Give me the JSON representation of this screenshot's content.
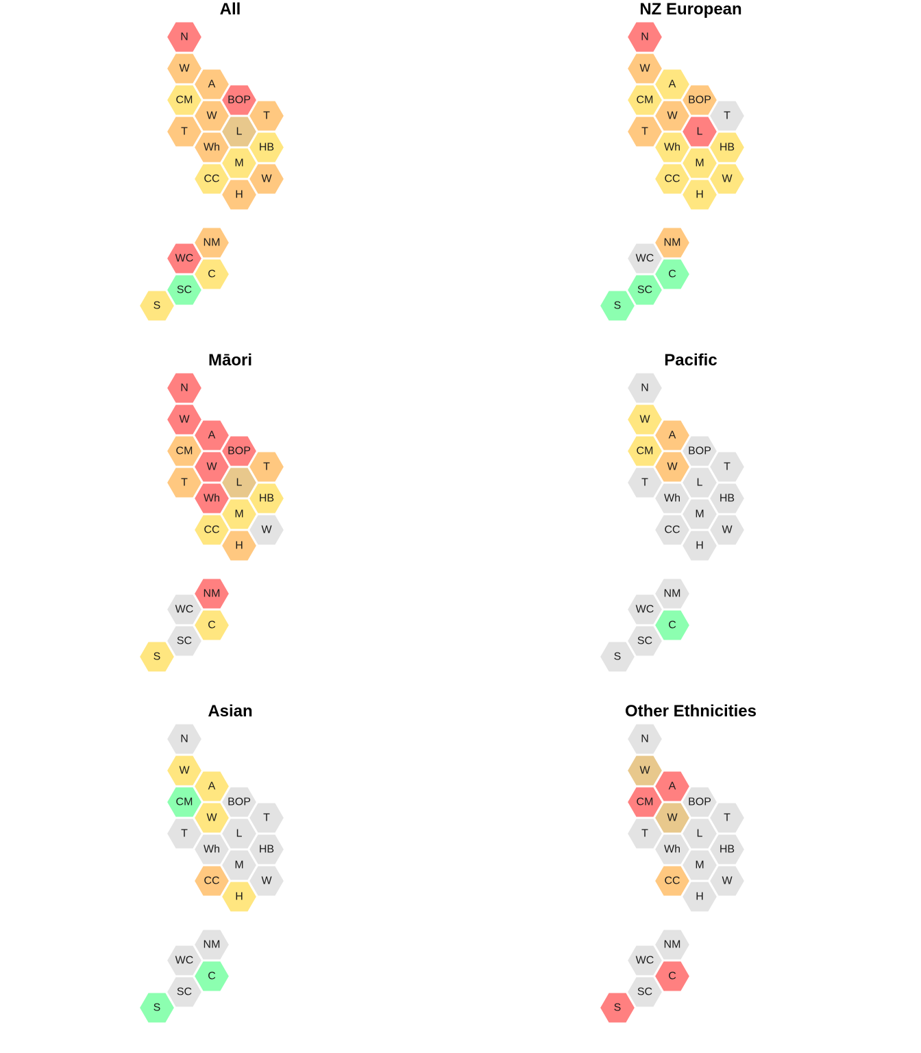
{
  "colors": {
    "red": "#ff8080",
    "orange": "#ffc880",
    "yellow": "#ffe680",
    "tan": "#e8c88c",
    "green": "#8cffb0",
    "grey": "#e3e3e3"
  },
  "panels": [
    {
      "title": "All",
      "regions": [
        {
          "label": "N",
          "color": "red"
        },
        {
          "label": "W",
          "color": "orange"
        },
        {
          "label": "A",
          "color": "orange"
        },
        {
          "label": "CM",
          "color": "yellow"
        },
        {
          "label": "BOP",
          "color": "red"
        },
        {
          "label": "W",
          "color": "orange"
        },
        {
          "label": "T",
          "color": "orange"
        },
        {
          "label": "T",
          "color": "orange"
        },
        {
          "label": "L",
          "color": "tan"
        },
        {
          "label": "Wh",
          "color": "orange"
        },
        {
          "label": "HB",
          "color": "yellow"
        },
        {
          "label": "M",
          "color": "yellow"
        },
        {
          "label": "CC",
          "color": "yellow"
        },
        {
          "label": "W",
          "color": "orange"
        },
        {
          "label": "H",
          "color": "orange"
        },
        {
          "label": "NM",
          "color": "orange"
        },
        {
          "label": "WC",
          "color": "red"
        },
        {
          "label": "C",
          "color": "yellow"
        },
        {
          "label": "SC",
          "color": "green"
        },
        {
          "label": "S",
          "color": "yellow"
        }
      ]
    },
    {
      "title": "NZ European",
      "regions": [
        {
          "label": "N",
          "color": "red"
        },
        {
          "label": "W",
          "color": "orange"
        },
        {
          "label": "A",
          "color": "yellow"
        },
        {
          "label": "CM",
          "color": "yellow"
        },
        {
          "label": "BOP",
          "color": "orange"
        },
        {
          "label": "W",
          "color": "orange"
        },
        {
          "label": "T",
          "color": "grey"
        },
        {
          "label": "T",
          "color": "orange"
        },
        {
          "label": "L",
          "color": "red"
        },
        {
          "label": "Wh",
          "color": "yellow"
        },
        {
          "label": "HB",
          "color": "yellow"
        },
        {
          "label": "M",
          "color": "yellow"
        },
        {
          "label": "CC",
          "color": "yellow"
        },
        {
          "label": "W",
          "color": "yellow"
        },
        {
          "label": "H",
          "color": "yellow"
        },
        {
          "label": "NM",
          "color": "orange"
        },
        {
          "label": "WC",
          "color": "grey"
        },
        {
          "label": "C",
          "color": "green"
        },
        {
          "label": "SC",
          "color": "green"
        },
        {
          "label": "S",
          "color": "green"
        }
      ]
    },
    {
      "title": "Māori",
      "regions": [
        {
          "label": "N",
          "color": "red"
        },
        {
          "label": "W",
          "color": "red"
        },
        {
          "label": "A",
          "color": "red"
        },
        {
          "label": "CM",
          "color": "orange"
        },
        {
          "label": "BOP",
          "color": "red"
        },
        {
          "label": "W",
          "color": "red"
        },
        {
          "label": "T",
          "color": "orange"
        },
        {
          "label": "T",
          "color": "orange"
        },
        {
          "label": "L",
          "color": "tan"
        },
        {
          "label": "Wh",
          "color": "red"
        },
        {
          "label": "HB",
          "color": "yellow"
        },
        {
          "label": "M",
          "color": "yellow"
        },
        {
          "label": "CC",
          "color": "yellow"
        },
        {
          "label": "W",
          "color": "grey"
        },
        {
          "label": "H",
          "color": "orange"
        },
        {
          "label": "NM",
          "color": "red"
        },
        {
          "label": "WC",
          "color": "grey"
        },
        {
          "label": "C",
          "color": "yellow"
        },
        {
          "label": "SC",
          "color": "grey"
        },
        {
          "label": "S",
          "color": "yellow"
        }
      ]
    },
    {
      "title": "Pacific",
      "regions": [
        {
          "label": "N",
          "color": "grey"
        },
        {
          "label": "W",
          "color": "yellow"
        },
        {
          "label": "A",
          "color": "orange"
        },
        {
          "label": "CM",
          "color": "yellow"
        },
        {
          "label": "BOP",
          "color": "grey"
        },
        {
          "label": "W",
          "color": "orange"
        },
        {
          "label": "T",
          "color": "grey"
        },
        {
          "label": "T",
          "color": "grey"
        },
        {
          "label": "L",
          "color": "grey"
        },
        {
          "label": "Wh",
          "color": "grey"
        },
        {
          "label": "HB",
          "color": "grey"
        },
        {
          "label": "M",
          "color": "grey"
        },
        {
          "label": "CC",
          "color": "grey"
        },
        {
          "label": "W",
          "color": "grey"
        },
        {
          "label": "H",
          "color": "grey"
        },
        {
          "label": "NM",
          "color": "grey"
        },
        {
          "label": "WC",
          "color": "grey"
        },
        {
          "label": "C",
          "color": "green"
        },
        {
          "label": "SC",
          "color": "grey"
        },
        {
          "label": "S",
          "color": "grey"
        }
      ]
    },
    {
      "title": "Asian",
      "regions": [
        {
          "label": "N",
          "color": "grey"
        },
        {
          "label": "W",
          "color": "yellow"
        },
        {
          "label": "A",
          "color": "yellow"
        },
        {
          "label": "CM",
          "color": "green"
        },
        {
          "label": "BOP",
          "color": "grey"
        },
        {
          "label": "W",
          "color": "yellow"
        },
        {
          "label": "T",
          "color": "grey"
        },
        {
          "label": "T",
          "color": "grey"
        },
        {
          "label": "L",
          "color": "grey"
        },
        {
          "label": "Wh",
          "color": "grey"
        },
        {
          "label": "HB",
          "color": "grey"
        },
        {
          "label": "M",
          "color": "grey"
        },
        {
          "label": "CC",
          "color": "orange"
        },
        {
          "label": "W",
          "color": "grey"
        },
        {
          "label": "H",
          "color": "yellow"
        },
        {
          "label": "NM",
          "color": "grey"
        },
        {
          "label": "WC",
          "color": "grey"
        },
        {
          "label": "C",
          "color": "green"
        },
        {
          "label": "SC",
          "color": "grey"
        },
        {
          "label": "S",
          "color": "green"
        }
      ]
    },
    {
      "title": "Other Ethnicities",
      "regions": [
        {
          "label": "N",
          "color": "grey"
        },
        {
          "label": "W",
          "color": "tan"
        },
        {
          "label": "A",
          "color": "red"
        },
        {
          "label": "CM",
          "color": "red"
        },
        {
          "label": "BOP",
          "color": "grey"
        },
        {
          "label": "W",
          "color": "tan"
        },
        {
          "label": "T",
          "color": "grey"
        },
        {
          "label": "T",
          "color": "grey"
        },
        {
          "label": "L",
          "color": "grey"
        },
        {
          "label": "Wh",
          "color": "grey"
        },
        {
          "label": "HB",
          "color": "grey"
        },
        {
          "label": "M",
          "color": "grey"
        },
        {
          "label": "CC",
          "color": "orange"
        },
        {
          "label": "W",
          "color": "grey"
        },
        {
          "label": "H",
          "color": "grey"
        },
        {
          "label": "NM",
          "color": "grey"
        },
        {
          "label": "WC",
          "color": "grey"
        },
        {
          "label": "C",
          "color": "red"
        },
        {
          "label": "SC",
          "color": "grey"
        },
        {
          "label": "S",
          "color": "red"
        }
      ]
    }
  ]
}
